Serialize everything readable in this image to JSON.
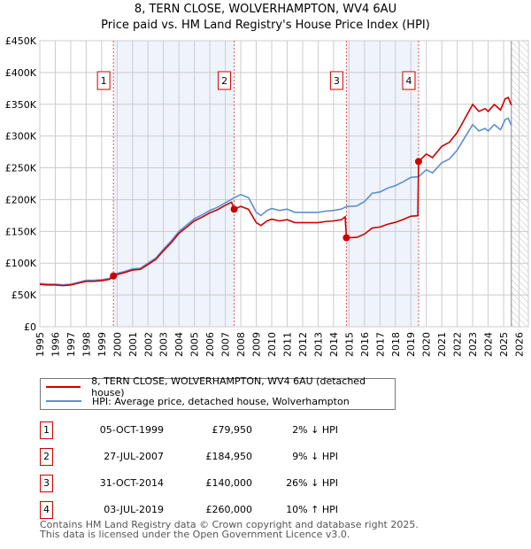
{
  "title": "8, TERN CLOSE, WOLVERHAMPTON, WV4 6AU",
  "subtitle": "Price paid vs. HM Land Registry's House Price Index (HPI)",
  "chart_data": {
    "type": "line",
    "xlim": [
      1995,
      2026.6
    ],
    "ylim": [
      0,
      450000
    ],
    "xticks": [
      "1995",
      "1996",
      "1997",
      "1998",
      "1999",
      "2000",
      "2001",
      "2002",
      "2003",
      "2004",
      "2005",
      "2006",
      "2007",
      "2008",
      "2009",
      "2010",
      "2011",
      "2012",
      "2013",
      "2014",
      "2015",
      "2016",
      "2017",
      "2018",
      "2019",
      "2020",
      "2021",
      "2022",
      "2023",
      "2024",
      "2025",
      "2026"
    ],
    "yticks": [
      {
        "v": 0,
        "label": "£0"
      },
      {
        "v": 50000,
        "label": "£50K"
      },
      {
        "v": 100000,
        "label": "£100K"
      },
      {
        "v": 150000,
        "label": "£150K"
      },
      {
        "v": 200000,
        "label": "£200K"
      },
      {
        "v": 250000,
        "label": "£250K"
      },
      {
        "v": 300000,
        "label": "£300K"
      },
      {
        "v": 350000,
        "label": "£350K"
      },
      {
        "v": 400000,
        "label": "£400K"
      },
      {
        "v": 450000,
        "label": "£450K"
      }
    ],
    "grid": true,
    "shaded_ranges": [
      [
        1999.76,
        2007.57
      ],
      [
        2014.83,
        2019.5
      ]
    ],
    "future_hatch_from": 2025.5,
    "series": [
      {
        "name": "8, TERN CLOSE, WOLVERHAMPTON, WV4 6AU (detached house)",
        "color": "#cc0000",
        "x": [
          1995,
          1995.5,
          1996,
          1996.5,
          1997,
          1997.5,
          1998,
          1998.5,
          1999,
          1999.5,
          1999.76,
          2000,
          2000.5,
          2001,
          2001.5,
          2002,
          2002.5,
          2003,
          2003.5,
          2004,
          2004.5,
          2005,
          2005.5,
          2006,
          2006.5,
          2007,
          2007.4,
          2007.57,
          2008,
          2008.5,
          2009,
          2009.3,
          2009.7,
          2010,
          2010.5,
          2011,
          2011.5,
          2012,
          2012.5,
          2013,
          2013.5,
          2014,
          2014.5,
          2014.75,
          2014.83,
          2015.5,
          2016,
          2016.5,
          2017,
          2017.5,
          2018,
          2018.5,
          2019,
          2019.45,
          2019.5,
          2020,
          2020.4,
          2021,
          2021.5,
          2022,
          2022.5,
          2023,
          2023.4,
          2023.8,
          2024,
          2024.4,
          2024.8,
          2025.1,
          2025.3,
          2025.5
        ],
        "y": [
          66600,
          65700,
          65700,
          64700,
          65700,
          68600,
          71500,
          71500,
          72500,
          74500,
          79950,
          82300,
          85300,
          89200,
          90200,
          98000,
          105800,
          119600,
          132300,
          147000,
          156800,
          166600,
          172500,
          179300,
          184200,
          191100,
          196000,
          184950,
          189300,
          184700,
          163800,
          159300,
          166500,
          169300,
          166500,
          168400,
          163800,
          163800,
          163800,
          163800,
          165600,
          166500,
          168400,
          172900,
          140000,
          140600,
          145800,
          155400,
          156900,
          161300,
          164300,
          168700,
          173900,
          174600,
          260000,
          271700,
          266200,
          283800,
          290400,
          305800,
          327800,
          349800,
          338800,
          343200,
          338800,
          349800,
          341000,
          358600,
          360800,
          348700
        ]
      },
      {
        "name": "HPI: Average price, detached house, Wolverhampton",
        "color": "#5b8fd4",
        "x": [
          1995,
          1995.5,
          1996,
          1996.5,
          1997,
          1997.5,
          1998,
          1998.5,
          1999,
          1999.5,
          1999.76,
          2000,
          2000.5,
          2001,
          2001.5,
          2002,
          2002.5,
          2003,
          2003.5,
          2004,
          2004.5,
          2005,
          2005.5,
          2006,
          2006.5,
          2007,
          2007.57,
          2008,
          2008.5,
          2009,
          2009.3,
          2009.7,
          2010,
          2010.5,
          2011,
          2011.5,
          2012,
          2012.5,
          2013,
          2013.5,
          2014,
          2014.5,
          2014.83,
          2015.5,
          2016,
          2016.5,
          2017,
          2017.5,
          2018,
          2018.5,
          2019,
          2019.5,
          2020,
          2020.4,
          2021,
          2021.5,
          2022,
          2022.5,
          2023,
          2023.4,
          2023.8,
          2024,
          2024.4,
          2024.8,
          2025.1,
          2025.3,
          2025.5
        ],
        "y": [
          68000,
          67000,
          67000,
          66000,
          67000,
          70000,
          73000,
          73000,
          74000,
          76000,
          81600,
          84000,
          87000,
          91000,
          92000,
          100000,
          108000,
          122000,
          135000,
          150000,
          160000,
          170000,
          176000,
          183000,
          188000,
          195000,
          203000,
          208000,
          203000,
          180000,
          175000,
          183000,
          186000,
          183000,
          185000,
          180000,
          180000,
          180000,
          180000,
          182000,
          183000,
          185000,
          189000,
          190000,
          197000,
          210000,
          212000,
          218000,
          222000,
          228000,
          235000,
          236000,
          247000,
          242000,
          258000,
          264000,
          278000,
          298000,
          318000,
          308000,
          312000,
          308000,
          318000,
          310000,
          326000,
          328000,
          317000
        ]
      }
    ],
    "sales": [
      {
        "label": "1",
        "x": 1999.76,
        "y": 79950
      },
      {
        "label": "2",
        "x": 2007.57,
        "y": 184950
      },
      {
        "label": "3",
        "x": 2014.83,
        "y": 140000
      },
      {
        "label": "4",
        "x": 2019.5,
        "y": 260000
      }
    ]
  },
  "legend": [
    {
      "label": "8, TERN CLOSE, WOLVERHAMPTON, WV4 6AU (detached house)",
      "color": "#cc0000"
    },
    {
      "label": "HPI: Average price, detached house, Wolverhampton",
      "color": "#5b8fd4"
    }
  ],
  "transactions": [
    {
      "num": "1",
      "date": "05-OCT-1999",
      "price": "£79,950",
      "hpi": "2% ↓ HPI"
    },
    {
      "num": "2",
      "date": "27-JUL-2007",
      "price": "£184,950",
      "hpi": "9% ↓ HPI"
    },
    {
      "num": "3",
      "date": "31-OCT-2014",
      "price": "£140,000",
      "hpi": "26% ↓ HPI"
    },
    {
      "num": "4",
      "date": "03-JUL-2019",
      "price": "£260,000",
      "hpi": "10% ↑ HPI"
    }
  ],
  "footer": {
    "line1": "Contains HM Land Registry data © Crown copyright and database right 2025.",
    "line2": "This data is licensed under the Open Government Licence v3.0."
  }
}
